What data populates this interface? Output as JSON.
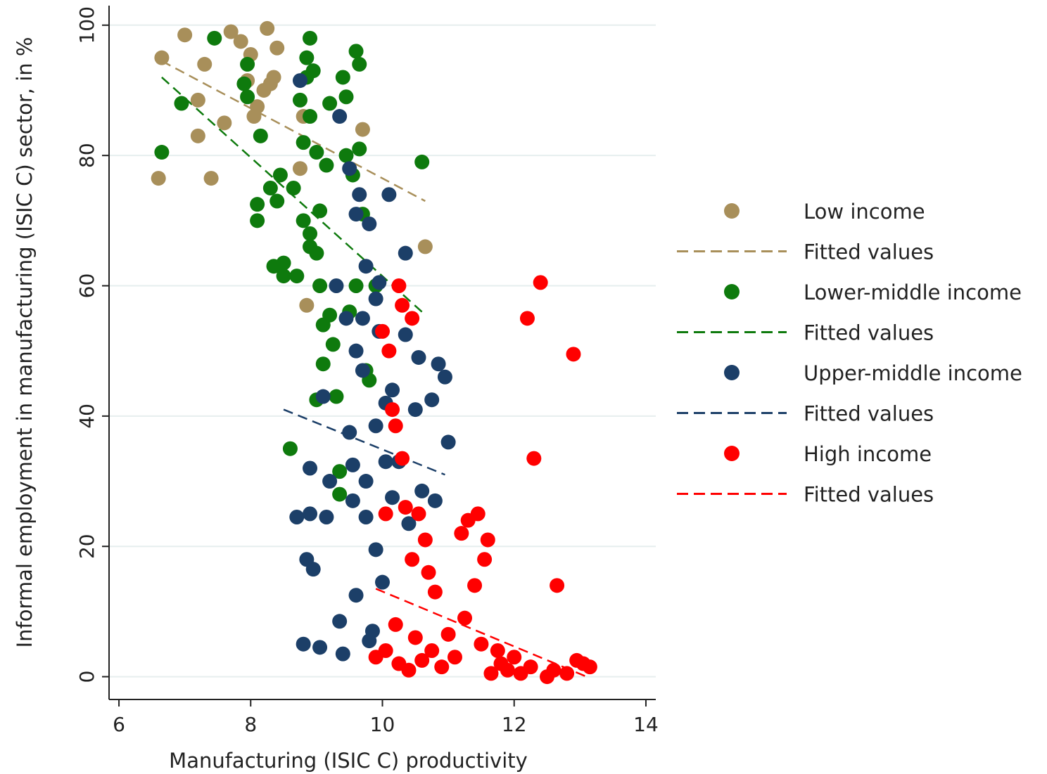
{
  "chart_data": {
    "type": "scatter",
    "title": "",
    "xlabel": "Manufacturing (ISIC C) productivity",
    "ylabel": "Informal employment in manufacturing (ISIC C) sector, in %",
    "xlim": [
      5.85,
      14.15
    ],
    "ylim": [
      -3.5,
      103
    ],
    "xticks": [
      6,
      8,
      10,
      12,
      14
    ],
    "yticks": [
      0,
      20,
      40,
      60,
      80,
      100
    ],
    "grid": "horizontal",
    "legend_position": "right",
    "series": [
      {
        "name": "Low income",
        "color": "#a88f5a",
        "points": [
          [
            6.6,
            76.5
          ],
          [
            6.65,
            95
          ],
          [
            7,
            98.5
          ],
          [
            7.2,
            88.5
          ],
          [
            7.2,
            83
          ],
          [
            7.3,
            94
          ],
          [
            7.4,
            76.5
          ],
          [
            7.6,
            85
          ],
          [
            7.7,
            99
          ],
          [
            7.85,
            97.5
          ],
          [
            7.95,
            91.5
          ],
          [
            8,
            95.5
          ],
          [
            8.05,
            86
          ],
          [
            8.1,
            87.5
          ],
          [
            8.2,
            90
          ],
          [
            8.25,
            99.5
          ],
          [
            8.3,
            91
          ],
          [
            8.35,
            92
          ],
          [
            8.4,
            96.5
          ],
          [
            8.75,
            78
          ],
          [
            8.8,
            86
          ],
          [
            8.85,
            57
          ],
          [
            9.7,
            84
          ],
          [
            10.65,
            66
          ]
        ],
        "fit": {
          "x": [
            6.65,
            10.65
          ],
          "y": [
            94.5,
            73
          ]
        }
      },
      {
        "name": "Fitted values",
        "color": "#a88f5a",
        "points": [],
        "fit": null
      },
      {
        "name": "Lower-middle income",
        "color": "#0e7a0d",
        "points": [
          [
            6.65,
            80.5
          ],
          [
            6.95,
            88
          ],
          [
            7.45,
            98
          ],
          [
            7.9,
            91
          ],
          [
            7.95,
            94
          ],
          [
            7.95,
            89
          ],
          [
            8.1,
            72.5
          ],
          [
            8.1,
            70
          ],
          [
            8.15,
            83
          ],
          [
            8.3,
            75
          ],
          [
            8.35,
            63
          ],
          [
            8.4,
            73
          ],
          [
            8.45,
            77
          ],
          [
            8.5,
            63.5
          ],
          [
            8.5,
            61.5
          ],
          [
            8.6,
            35
          ],
          [
            8.65,
            75
          ],
          [
            8.7,
            61.5
          ],
          [
            8.75,
            88.5
          ],
          [
            8.8,
            82
          ],
          [
            8.8,
            70
          ],
          [
            8.85,
            95
          ],
          [
            8.85,
            92
          ],
          [
            8.9,
            98
          ],
          [
            8.9,
            86
          ],
          [
            8.9,
            68
          ],
          [
            8.9,
            66
          ],
          [
            8.95,
            93
          ],
          [
            9,
            80.5
          ],
          [
            9,
            65
          ],
          [
            9,
            42.5
          ],
          [
            9.05,
            71.5
          ],
          [
            9.05,
            60
          ],
          [
            9.1,
            54
          ],
          [
            9.1,
            48
          ],
          [
            9.15,
            78.5
          ],
          [
            9.2,
            88
          ],
          [
            9.2,
            55.5
          ],
          [
            9.25,
            51
          ],
          [
            9.3,
            43
          ],
          [
            9.35,
            31.5
          ],
          [
            9.35,
            28
          ],
          [
            9.4,
            92
          ],
          [
            9.45,
            89
          ],
          [
            9.45,
            80
          ],
          [
            9.5,
            56
          ],
          [
            9.55,
            77
          ],
          [
            9.6,
            96
          ],
          [
            9.6,
            60
          ],
          [
            9.65,
            94
          ],
          [
            9.65,
            81
          ],
          [
            9.7,
            71
          ],
          [
            9.75,
            47
          ],
          [
            9.8,
            45.5
          ],
          [
            9.9,
            60
          ],
          [
            10.6,
            79
          ]
        ],
        "fit": {
          "x": [
            6.65,
            10.6
          ],
          "y": [
            92,
            56
          ]
        }
      },
      {
        "name": "Fitted values",
        "color": "#0e7a0d",
        "points": [],
        "fit": null
      },
      {
        "name": "Upper-middle income",
        "color": "#1c3f68",
        "points": [
          [
            8.7,
            24.5
          ],
          [
            8.75,
            91.5
          ],
          [
            8.8,
            5
          ],
          [
            8.85,
            18
          ],
          [
            8.9,
            32
          ],
          [
            8.9,
            25
          ],
          [
            8.95,
            16.5
          ],
          [
            9.05,
            4.5
          ],
          [
            9.1,
            43
          ],
          [
            9.15,
            24.5
          ],
          [
            9.2,
            30
          ],
          [
            9.3,
            60
          ],
          [
            9.35,
            8.5
          ],
          [
            9.35,
            86
          ],
          [
            9.4,
            3.5
          ],
          [
            9.45,
            55
          ],
          [
            9.5,
            78
          ],
          [
            9.5,
            37.5
          ],
          [
            9.55,
            32.5
          ],
          [
            9.55,
            27
          ],
          [
            9.6,
            71
          ],
          [
            9.6,
            50
          ],
          [
            9.6,
            12.5
          ],
          [
            9.65,
            74
          ],
          [
            9.7,
            55
          ],
          [
            9.7,
            47
          ],
          [
            9.75,
            63
          ],
          [
            9.75,
            30
          ],
          [
            9.75,
            24.5
          ],
          [
            9.8,
            69.5
          ],
          [
            9.8,
            5.5
          ],
          [
            9.85,
            7
          ],
          [
            9.9,
            58
          ],
          [
            9.9,
            38.5
          ],
          [
            9.9,
            19.5
          ],
          [
            9.95,
            60.5
          ],
          [
            9.95,
            53
          ],
          [
            10,
            14.5
          ],
          [
            10.05,
            42
          ],
          [
            10.05,
            33
          ],
          [
            10.1,
            74
          ],
          [
            10.15,
            44
          ],
          [
            10.15,
            27.5
          ],
          [
            10.25,
            33
          ],
          [
            10.35,
            52.5
          ],
          [
            10.35,
            65
          ],
          [
            10.4,
            23.5
          ],
          [
            10.5,
            41
          ],
          [
            10.55,
            49
          ],
          [
            10.6,
            28.5
          ],
          [
            10.75,
            42.5
          ],
          [
            10.8,
            27
          ],
          [
            10.85,
            48
          ],
          [
            10.95,
            46
          ],
          [
            11,
            36
          ]
        ],
        "fit": {
          "x": [
            8.5,
            10.95
          ],
          "y": [
            41,
            31
          ]
        }
      },
      {
        "name": "Fitted values",
        "color": "#1c3f68",
        "points": [],
        "fit": null
      },
      {
        "name": "High income",
        "color": "#ff0000",
        "points": [
          [
            9.9,
            3
          ],
          [
            10,
            53
          ],
          [
            10.05,
            25
          ],
          [
            10.05,
            4
          ],
          [
            10.1,
            50
          ],
          [
            10.15,
            41
          ],
          [
            10.2,
            38.5
          ],
          [
            10.2,
            8
          ],
          [
            10.25,
            60
          ],
          [
            10.25,
            2
          ],
          [
            10.3,
            33.5
          ],
          [
            10.3,
            57
          ],
          [
            10.35,
            26
          ],
          [
            10.4,
            1
          ],
          [
            10.45,
            55
          ],
          [
            10.45,
            18
          ],
          [
            10.5,
            6
          ],
          [
            10.55,
            25
          ],
          [
            10.6,
            2.5
          ],
          [
            10.65,
            21
          ],
          [
            10.7,
            16
          ],
          [
            10.75,
            4
          ],
          [
            10.8,
            13
          ],
          [
            10.9,
            1.5
          ],
          [
            11,
            6.5
          ],
          [
            11.1,
            3
          ],
          [
            11.2,
            22
          ],
          [
            11.25,
            9
          ],
          [
            11.3,
            24
          ],
          [
            11.4,
            14
          ],
          [
            11.45,
            25
          ],
          [
            11.5,
            5
          ],
          [
            11.55,
            18
          ],
          [
            11.6,
            21
          ],
          [
            11.65,
            0.5
          ],
          [
            11.75,
            4
          ],
          [
            11.8,
            2
          ],
          [
            11.9,
            1
          ],
          [
            12,
            3
          ],
          [
            12.1,
            0.5
          ],
          [
            12.2,
            55
          ],
          [
            12.25,
            1.5
          ],
          [
            12.3,
            33.5
          ],
          [
            12.4,
            60.5
          ],
          [
            12.5,
            0
          ],
          [
            12.6,
            1
          ],
          [
            12.65,
            14
          ],
          [
            12.8,
            0.5
          ],
          [
            12.9,
            49.5
          ],
          [
            12.95,
            2.5
          ],
          [
            13.05,
            2
          ],
          [
            13.15,
            1.5
          ]
        ],
        "fit": {
          "x": [
            9.9,
            13.1
          ],
          "y": [
            13.5,
            0
          ]
        }
      },
      {
        "name": "Fitted values",
        "color": "#ff0000",
        "points": [],
        "fit": null
      }
    ]
  }
}
